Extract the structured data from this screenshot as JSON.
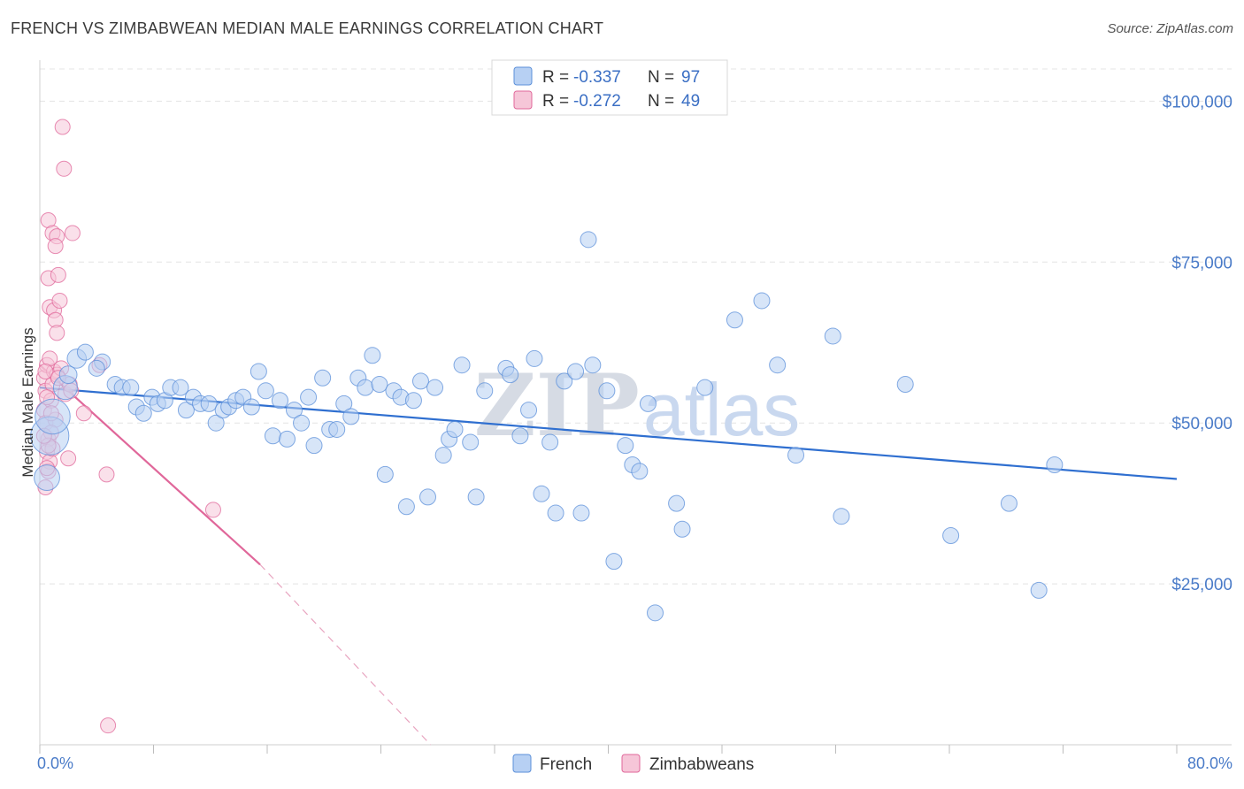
{
  "title": "FRENCH VS ZIMBABWEAN MEDIAN MALE EARNINGS CORRELATION CHART",
  "source": "Source: ZipAtlas.com",
  "watermark": "ZIPatlas",
  "colors": {
    "french": "#5b8fd9",
    "french_fill": "#b7d0f3",
    "zimbabwean": "#e0679a",
    "zimbabwean_fill": "#f6c6d8",
    "axis_label": "#4a7bc8",
    "grid": "#e4e4e4"
  },
  "legend": {
    "french": {
      "r_label": "R =",
      "r_value": "-0.337",
      "n_label": "N =",
      "n_value": "97"
    },
    "zimbabwean": {
      "r_label": "R =",
      "r_value": "-0.272",
      "n_label": "N =",
      "n_value": "49"
    }
  },
  "chart_data": {
    "type": "scatter",
    "title": "FRENCH VS ZIMBABWEAN MEDIAN MALE EARNINGS CORRELATION CHART",
    "xlabel": "",
    "ylabel": "Median Male Earnings",
    "xlim": [
      0,
      80
    ],
    "ylim": [
      0,
      105000
    ],
    "x_tick_labels": [
      "0.0%",
      "80.0%"
    ],
    "y_ticks": [
      25000,
      50000,
      75000,
      100000
    ],
    "y_tick_labels": [
      "$25,000",
      "$50,000",
      "$75,000",
      "$100,000"
    ],
    "grid": true,
    "legend_entries": [
      "French",
      "Zimbabweans"
    ],
    "series": [
      {
        "name": "French",
        "trend": {
          "x0": 0,
          "y0": 55500,
          "x1": 80,
          "y1": 41300
        },
        "points": [
          {
            "x": 0.7,
            "y": 48000,
            "s": 2.4
          },
          {
            "x": 0.9,
            "y": 51000,
            "s": 2.2
          },
          {
            "x": 0.5,
            "y": 41500,
            "s": 1.6
          },
          {
            "x": 1.8,
            "y": 55500,
            "s": 1.5
          },
          {
            "x": 2.6,
            "y": 60000,
            "s": 1.2
          },
          {
            "x": 2.0,
            "y": 57500,
            "s": 1.1
          },
          {
            "x": 3.2,
            "y": 61000,
            "s": 1
          },
          {
            "x": 4.4,
            "y": 59500,
            "s": 1
          },
          {
            "x": 4.0,
            "y": 58500,
            "s": 1
          },
          {
            "x": 5.3,
            "y": 56000,
            "s": 1
          },
          {
            "x": 5.8,
            "y": 55500,
            "s": 1
          },
          {
            "x": 6.4,
            "y": 55500,
            "s": 1
          },
          {
            "x": 6.8,
            "y": 52500,
            "s": 1
          },
          {
            "x": 7.3,
            "y": 51500,
            "s": 1
          },
          {
            "x": 7.9,
            "y": 54000,
            "s": 1
          },
          {
            "x": 8.3,
            "y": 53000,
            "s": 1
          },
          {
            "x": 8.8,
            "y": 53500,
            "s": 1
          },
          {
            "x": 9.2,
            "y": 55500,
            "s": 1
          },
          {
            "x": 9.9,
            "y": 55500,
            "s": 1
          },
          {
            "x": 10.3,
            "y": 52000,
            "s": 1
          },
          {
            "x": 10.8,
            "y": 54000,
            "s": 1
          },
          {
            "x": 11.3,
            "y": 53000,
            "s": 1
          },
          {
            "x": 11.9,
            "y": 53000,
            "s": 1
          },
          {
            "x": 12.4,
            "y": 50000,
            "s": 1
          },
          {
            "x": 12.9,
            "y": 52000,
            "s": 1
          },
          {
            "x": 13.3,
            "y": 52500,
            "s": 1
          },
          {
            "x": 13.8,
            "y": 53500,
            "s": 1
          },
          {
            "x": 14.3,
            "y": 54000,
            "s": 1
          },
          {
            "x": 14.9,
            "y": 52500,
            "s": 1
          },
          {
            "x": 15.4,
            "y": 58000,
            "s": 1
          },
          {
            "x": 15.9,
            "y": 55000,
            "s": 1
          },
          {
            "x": 16.4,
            "y": 48000,
            "s": 1
          },
          {
            "x": 16.9,
            "y": 53500,
            "s": 1
          },
          {
            "x": 17.4,
            "y": 47500,
            "s": 1
          },
          {
            "x": 17.9,
            "y": 52000,
            "s": 1
          },
          {
            "x": 18.4,
            "y": 50000,
            "s": 1
          },
          {
            "x": 18.9,
            "y": 54000,
            "s": 1
          },
          {
            "x": 19.3,
            "y": 46500,
            "s": 1
          },
          {
            "x": 19.9,
            "y": 57000,
            "s": 1
          },
          {
            "x": 20.4,
            "y": 49000,
            "s": 1
          },
          {
            "x": 20.9,
            "y": 49000,
            "s": 1
          },
          {
            "x": 21.4,
            "y": 53000,
            "s": 1
          },
          {
            "x": 21.9,
            "y": 51000,
            "s": 1
          },
          {
            "x": 22.4,
            "y": 57000,
            "s": 1
          },
          {
            "x": 22.9,
            "y": 55500,
            "s": 1
          },
          {
            "x": 23.4,
            "y": 60500,
            "s": 1
          },
          {
            "x": 23.9,
            "y": 56000,
            "s": 1
          },
          {
            "x": 24.3,
            "y": 42000,
            "s": 1
          },
          {
            "x": 24.9,
            "y": 55000,
            "s": 1
          },
          {
            "x": 25.4,
            "y": 54000,
            "s": 1
          },
          {
            "x": 25.8,
            "y": 37000,
            "s": 1
          },
          {
            "x": 26.3,
            "y": 53500,
            "s": 1
          },
          {
            "x": 26.8,
            "y": 56500,
            "s": 1
          },
          {
            "x": 27.3,
            "y": 38500,
            "s": 1
          },
          {
            "x": 27.8,
            "y": 55500,
            "s": 1
          },
          {
            "x": 28.4,
            "y": 45000,
            "s": 1
          },
          {
            "x": 28.8,
            "y": 47500,
            "s": 1
          },
          {
            "x": 29.2,
            "y": 49000,
            "s": 1
          },
          {
            "x": 29.7,
            "y": 59000,
            "s": 1
          },
          {
            "x": 30.3,
            "y": 47000,
            "s": 1
          },
          {
            "x": 30.7,
            "y": 38500,
            "s": 1
          },
          {
            "x": 31.3,
            "y": 55000,
            "s": 1
          },
          {
            "x": 32.8,
            "y": 58500,
            "s": 1
          },
          {
            "x": 33.1,
            "y": 57500,
            "s": 1
          },
          {
            "x": 33.8,
            "y": 48000,
            "s": 1
          },
          {
            "x": 34.4,
            "y": 52000,
            "s": 1
          },
          {
            "x": 34.8,
            "y": 60000,
            "s": 1
          },
          {
            "x": 35.3,
            "y": 39000,
            "s": 1
          },
          {
            "x": 35.9,
            "y": 47000,
            "s": 1
          },
          {
            "x": 36.3,
            "y": 36000,
            "s": 1
          },
          {
            "x": 36.9,
            "y": 56500,
            "s": 1
          },
          {
            "x": 37.7,
            "y": 58000,
            "s": 1
          },
          {
            "x": 38.1,
            "y": 36000,
            "s": 1
          },
          {
            "x": 38.6,
            "y": 78500,
            "s": 1
          },
          {
            "x": 38.9,
            "y": 59000,
            "s": 1
          },
          {
            "x": 39.9,
            "y": 55000,
            "s": 1
          },
          {
            "x": 40.4,
            "y": 28500,
            "s": 1
          },
          {
            "x": 41.2,
            "y": 46500,
            "s": 1
          },
          {
            "x": 41.7,
            "y": 43500,
            "s": 1
          },
          {
            "x": 42.2,
            "y": 42500,
            "s": 1
          },
          {
            "x": 42.8,
            "y": 53000,
            "s": 1
          },
          {
            "x": 43.3,
            "y": 20500,
            "s": 1
          },
          {
            "x": 44.8,
            "y": 37500,
            "s": 1
          },
          {
            "x": 45.2,
            "y": 33500,
            "s": 1
          },
          {
            "x": 46.8,
            "y": 55500,
            "s": 1
          },
          {
            "x": 48.9,
            "y": 66000,
            "s": 1
          },
          {
            "x": 50.8,
            "y": 69000,
            "s": 1
          },
          {
            "x": 51.9,
            "y": 59000,
            "s": 1
          },
          {
            "x": 53.2,
            "y": 45000,
            "s": 1
          },
          {
            "x": 55.8,
            "y": 63500,
            "s": 1
          },
          {
            "x": 56.4,
            "y": 35500,
            "s": 1
          },
          {
            "x": 60.9,
            "y": 56000,
            "s": 1
          },
          {
            "x": 64.1,
            "y": 32500,
            "s": 1
          },
          {
            "x": 68.2,
            "y": 37500,
            "s": 1
          },
          {
            "x": 70.3,
            "y": 24000,
            "s": 1
          },
          {
            "x": 71.4,
            "y": 43500,
            "s": 1
          }
        ]
      },
      {
        "name": "Zimbabweans",
        "trend": {
          "x0": 0,
          "y0": 59000,
          "x1": 15.5,
          "y1": 28000,
          "dash_x1": 27.5,
          "dash_y1": 0
        },
        "points": [
          {
            "x": 0.3,
            "y": 57000,
            "s": 1
          },
          {
            "x": 0.4,
            "y": 55000,
            "s": 1
          },
          {
            "x": 0.5,
            "y": 59000,
            "s": 1
          },
          {
            "x": 0.3,
            "y": 52000,
            "s": 1
          },
          {
            "x": 0.4,
            "y": 50000,
            "s": 1
          },
          {
            "x": 0.6,
            "y": 47500,
            "s": 1
          },
          {
            "x": 0.5,
            "y": 45500,
            "s": 1
          },
          {
            "x": 0.7,
            "y": 44000,
            "s": 1
          },
          {
            "x": 0.6,
            "y": 42500,
            "s": 1
          },
          {
            "x": 0.4,
            "y": 40000,
            "s": 1
          },
          {
            "x": 0.8,
            "y": 53500,
            "s": 1
          },
          {
            "x": 0.9,
            "y": 56000,
            "s": 1
          },
          {
            "x": 1.0,
            "y": 58000,
            "s": 1
          },
          {
            "x": 0.7,
            "y": 60000,
            "s": 1
          },
          {
            "x": 1.1,
            "y": 50500,
            "s": 1
          },
          {
            "x": 0.9,
            "y": 46000,
            "s": 1
          },
          {
            "x": 0.8,
            "y": 48500,
            "s": 1
          },
          {
            "x": 1.2,
            "y": 57500,
            "s": 1
          },
          {
            "x": 0.6,
            "y": 81500,
            "s": 1
          },
          {
            "x": 0.9,
            "y": 79500,
            "s": 1
          },
          {
            "x": 1.2,
            "y": 79000,
            "s": 1
          },
          {
            "x": 1.1,
            "y": 77500,
            "s": 1
          },
          {
            "x": 2.3,
            "y": 79500,
            "s": 1
          },
          {
            "x": 0.6,
            "y": 72500,
            "s": 1
          },
          {
            "x": 1.3,
            "y": 73000,
            "s": 1
          },
          {
            "x": 0.7,
            "y": 68000,
            "s": 1
          },
          {
            "x": 1.0,
            "y": 67500,
            "s": 1
          },
          {
            "x": 1.4,
            "y": 69000,
            "s": 1
          },
          {
            "x": 1.1,
            "y": 66000,
            "s": 1
          },
          {
            "x": 1.2,
            "y": 64000,
            "s": 1
          },
          {
            "x": 1.6,
            "y": 96000,
            "s": 1
          },
          {
            "x": 1.7,
            "y": 89500,
            "s": 1
          },
          {
            "x": 1.5,
            "y": 58500,
            "s": 1
          },
          {
            "x": 1.8,
            "y": 54500,
            "s": 1
          },
          {
            "x": 2.1,
            "y": 56000,
            "s": 1
          },
          {
            "x": 2.2,
            "y": 55000,
            "s": 1
          },
          {
            "x": 2.0,
            "y": 44500,
            "s": 1
          },
          {
            "x": 3.1,
            "y": 51500,
            "s": 1
          },
          {
            "x": 4.2,
            "y": 59000,
            "s": 1
          },
          {
            "x": 4.7,
            "y": 42000,
            "s": 1
          },
          {
            "x": 12.2,
            "y": 36500,
            "s": 1
          },
          {
            "x": 4.8,
            "y": 3000,
            "s": 1
          },
          {
            "x": 0.5,
            "y": 43000,
            "s": 1
          },
          {
            "x": 0.4,
            "y": 58000,
            "s": 1
          },
          {
            "x": 0.8,
            "y": 51500,
            "s": 1
          },
          {
            "x": 1.3,
            "y": 57000,
            "s": 1
          },
          {
            "x": 0.6,
            "y": 46500,
            "s": 1
          },
          {
            "x": 0.3,
            "y": 48000,
            "s": 1
          },
          {
            "x": 0.5,
            "y": 54000,
            "s": 1
          }
        ]
      }
    ]
  }
}
